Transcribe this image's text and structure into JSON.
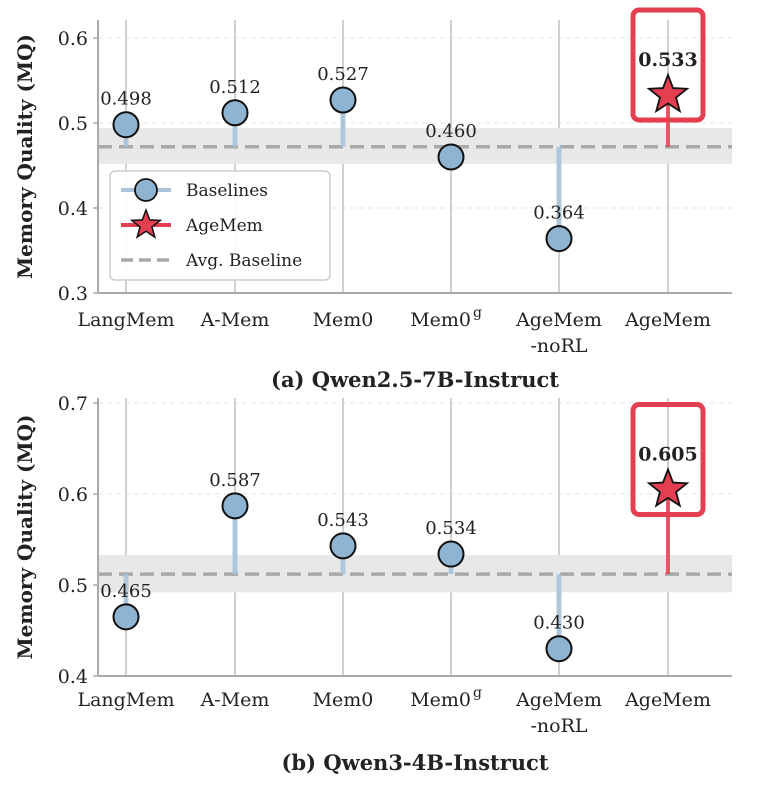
{
  "colors": {
    "baseline": "#8fb4d1",
    "baseline_stem": "#a9c4db",
    "agemem": "#e43f51",
    "avg_line": "#a8a8a8",
    "band": "#e8e8e8",
    "grid": "#d0d0d0",
    "axis": "#aaaaaa"
  },
  "legend": {
    "placement": "center-left",
    "entries": [
      "Baselines",
      "AgeMem",
      "Avg. Baseline"
    ]
  },
  "chart_data": [
    {
      "type": "lollipop",
      "caption": "(a) Qwen2.5-7B-Instruct",
      "ylabel": "Memory Quality (MQ)",
      "ylim": [
        0.3,
        0.62
      ],
      "yticks": [
        "0.3",
        "0.4",
        "0.5",
        "0.6"
      ],
      "categories": [
        "LangMem",
        "A-Mem",
        "Mem0",
        "Mem0",
        "AgeMem",
        "AgeMem"
      ],
      "category_superscripts": [
        "",
        "",
        "",
        "g",
        "",
        ""
      ],
      "category_sublines": [
        "",
        "",
        "",
        "",
        "-noRL",
        ""
      ],
      "values": [
        0.498,
        0.512,
        0.527,
        0.46,
        0.364,
        0.533
      ],
      "value_labels": [
        "0.498",
        "0.512",
        "0.527",
        "0.460",
        "0.364",
        "0.533"
      ],
      "series_of_points": [
        "Baselines",
        "Baselines",
        "Baselines",
        "Baselines",
        "Baselines",
        "AgeMem"
      ],
      "avg_baseline": 0.472,
      "band": [
        0.452,
        0.494
      ],
      "show_legend": true
    },
    {
      "type": "lollipop",
      "caption": "(b) Qwen3-4B-Instruct",
      "ylabel": "Memory Quality (MQ)",
      "ylim": [
        0.4,
        0.7
      ],
      "yticks": [
        "0.4",
        "0.5",
        "0.6",
        "0.7"
      ],
      "categories": [
        "LangMem",
        "A-Mem",
        "Mem0",
        "Mem0",
        "AgeMem",
        "AgeMem"
      ],
      "category_superscripts": [
        "",
        "",
        "",
        "g",
        "",
        ""
      ],
      "category_sublines": [
        "",
        "",
        "",
        "",
        "-noRL",
        ""
      ],
      "values": [
        0.465,
        0.587,
        0.543,
        0.534,
        0.43,
        0.605
      ],
      "value_labels": [
        "0.465",
        "0.587",
        "0.543",
        "0.534",
        "0.430",
        "0.605"
      ],
      "series_of_points": [
        "Baselines",
        "Baselines",
        "Baselines",
        "Baselines",
        "Baselines",
        "AgeMem"
      ],
      "avg_baseline": 0.512,
      "band": [
        0.492,
        0.533
      ],
      "show_legend": false
    }
  ]
}
